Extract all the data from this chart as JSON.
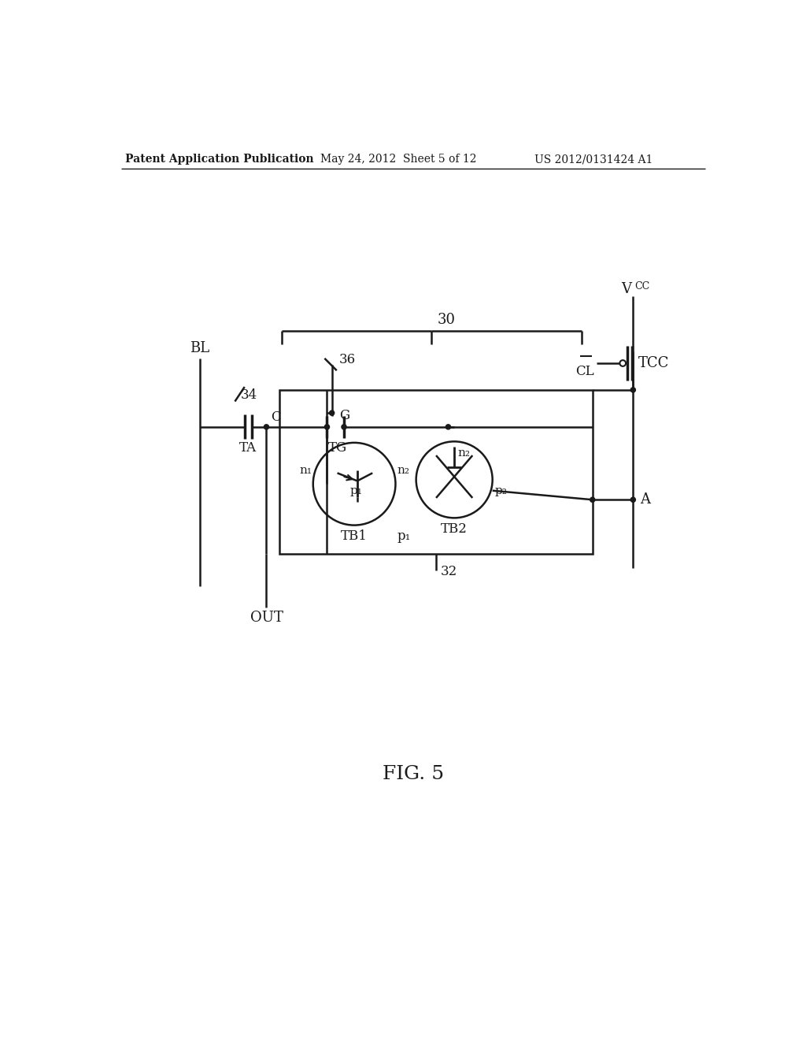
{
  "header_left": "Patent Application Publication",
  "header_center": "May 24, 2012  Sheet 5 of 12",
  "header_right": "US 2012/0131424 A1",
  "bg_color": "#ffffff",
  "line_color": "#1a1a1a",
  "text_color": "#1a1a1a",
  "lw": 1.8,
  "fig_caption": "FIG. 5",
  "label_30": "30",
  "label_32": "32",
  "label_34": "34",
  "label_36": "36",
  "label_BL": "BL",
  "label_TA": "TA",
  "label_C": "C",
  "label_G": "G",
  "label_TG": "TG",
  "label_TB1": "TB1",
  "label_TB2": "TB2",
  "label_n1": "n₁",
  "label_n2": "n₂",
  "label_p1": "p₁",
  "label_p2": "p₂",
  "label_OUT": "OUT",
  "label_TCC": "TCC",
  "label_CL": "CL",
  "label_Vcc": "V",
  "label_A": "A"
}
